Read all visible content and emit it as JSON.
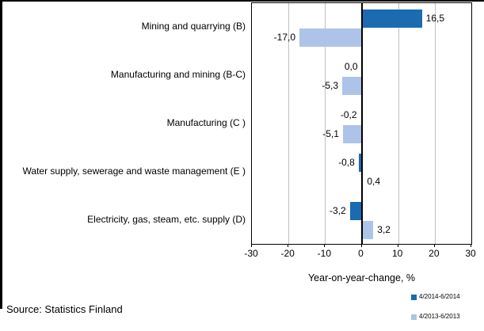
{
  "chart_data": {
    "type": "bar",
    "orientation": "horizontal",
    "categories": [
      "Mining and quarrying (B)",
      "Manufacturing and mining (B-C)",
      "Manufacturing (C )",
      "Water supply, sewerage and waste management (E )",
      "Electricity, gas, steam, etc. supply  (D)"
    ],
    "series": [
      {
        "name": "4/2014-6/2014",
        "color": "#1b6bb0",
        "values": [
          16.5,
          0.0,
          -0.2,
          -0.8,
          -3.2
        ],
        "display_labels": [
          "16,5",
          "0,0",
          "-0,2",
          "-0,8",
          "-3,2"
        ]
      },
      {
        "name": "4/2013-6/2013",
        "color": "#aec3e8",
        "values": [
          -17.0,
          -5.3,
          -5.1,
          0.4,
          3.2
        ],
        "display_labels": [
          "-17,0",
          "-5,3",
          "-5,1",
          "0,4",
          "3,2"
        ]
      }
    ],
    "xlabel": "Year-on-year-change, %",
    "xlim": [
      -30,
      30
    ],
    "xticks": [
      -30,
      -20,
      -10,
      0,
      10,
      20,
      30
    ],
    "xtick_labels": [
      "-30",
      "-20",
      "-10",
      "0",
      "10",
      "20",
      "30"
    ],
    "grid": true,
    "gridline_color": "#c0c0c0",
    "legend_position": "bottom-right"
  },
  "source": {
    "label": "Source: Statistics Finland"
  }
}
